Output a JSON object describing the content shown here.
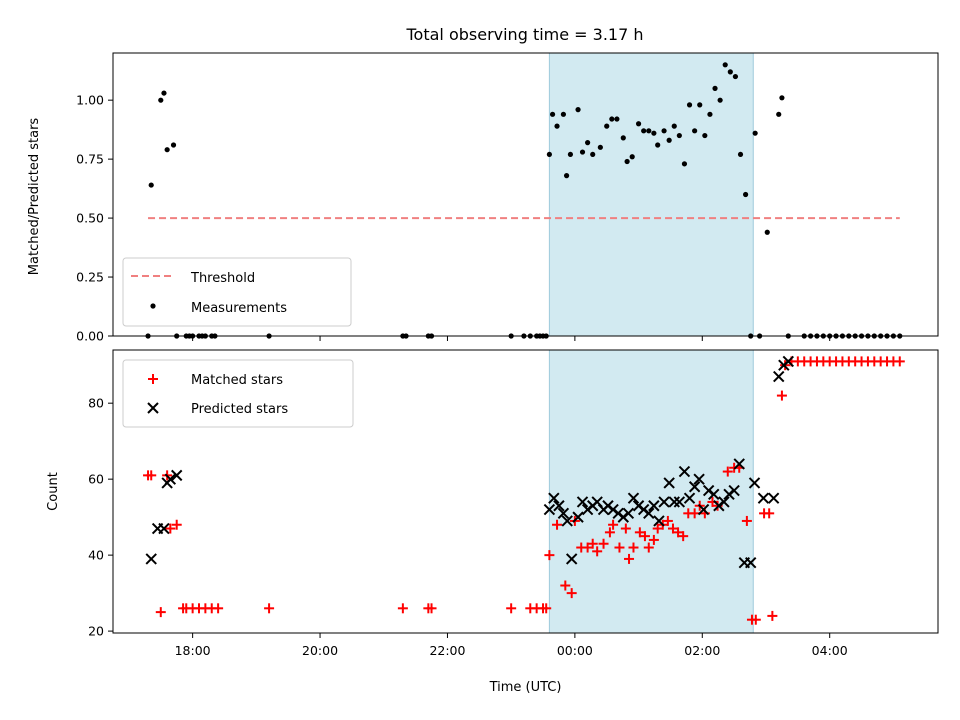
{
  "chart_data": [
    {
      "type": "scatter",
      "panel": "top",
      "title": "Total observing time = 3.17 h",
      "ylabel": "Matched/Predicted stars",
      "ylim": [
        0,
        1.2
      ],
      "yticks": [
        0.0,
        0.25,
        0.5,
        0.75,
        1.0
      ],
      "ytick_labels": [
        "0.00",
        "0.25",
        "0.50",
        "0.75",
        "1.00"
      ],
      "xlim_hours": [
        16.75,
        29.7
      ],
      "shaded_region_hours": [
        23.6,
        26.8
      ],
      "shaded_color": "#add8e6",
      "threshold": {
        "name": "Threshold",
        "value": 0.5,
        "x_range_hours": [
          17.3,
          29.1
        ],
        "color": "#f08080"
      },
      "series": [
        {
          "name": "Measurements",
          "color": "#000000",
          "marker": "dot",
          "x": [
            17.3,
            17.35,
            17.5,
            17.55,
            17.6,
            17.7,
            17.75,
            17.9,
            17.95,
            18.0,
            18.1,
            18.15,
            18.2,
            18.3,
            18.35,
            19.2,
            21.3,
            21.35,
            21.7,
            21.75,
            23.0,
            23.2,
            23.3,
            23.4,
            23.45,
            23.5,
            23.55,
            23.6,
            23.65,
            23.72,
            23.82,
            23.87,
            23.93,
            24.05,
            24.12,
            24.2,
            24.28,
            24.4,
            24.5,
            24.58,
            24.66,
            24.76,
            24.82,
            24.9,
            25.0,
            25.08,
            25.16,
            25.24,
            25.3,
            25.4,
            25.48,
            25.56,
            25.64,
            25.72,
            25.8,
            25.88,
            25.96,
            26.04,
            26.12,
            26.2,
            26.28,
            26.36,
            26.44,
            26.52,
            26.6,
            26.68,
            26.76,
            26.83,
            26.9,
            27.02,
            27.2,
            27.25,
            27.35,
            27.6,
            27.7,
            27.8,
            27.9,
            28.0,
            28.1,
            28.2,
            28.3,
            28.4,
            28.5,
            28.6,
            28.7,
            28.8,
            28.9,
            29.0,
            29.1
          ],
          "y": [
            0,
            0.64,
            1.0,
            1.03,
            0.79,
            0.81,
            0,
            0,
            0,
            0,
            0,
            0,
            0,
            0,
            0,
            0,
            0,
            0,
            0,
            0,
            0,
            0,
            0,
            0,
            0,
            0,
            0,
            0.77,
            0.94,
            0.89,
            0.94,
            0.68,
            0.77,
            0.96,
            0.78,
            0.82,
            0.77,
            0.8,
            0.89,
            0.92,
            0.92,
            0.84,
            0.74,
            0.76,
            0.9,
            0.87,
            0.87,
            0.86,
            0.81,
            0.87,
            0.83,
            0.89,
            0.85,
            0.73,
            0.98,
            0.87,
            0.98,
            0.85,
            0.94,
            1.05,
            1.0,
            1.15,
            1.12,
            1.1,
            0.77,
            0.6,
            0,
            0.86,
            0,
            0.44,
            0.94,
            1.01,
            0,
            0,
            0,
            0,
            0,
            0,
            0,
            0,
            0,
            0,
            0,
            0,
            0,
            0,
            0,
            0,
            0
          ]
        }
      ],
      "legend": {
        "position": "lower left",
        "entries": [
          "Threshold",
          "Measurements"
        ]
      }
    },
    {
      "type": "scatter",
      "panel": "bottom",
      "xlabel": "Time (UTC)",
      "ylabel": "Count",
      "ylim": [
        19.5,
        94
      ],
      "yticks": [
        20,
        40,
        60,
        80
      ],
      "ytick_labels": [
        "20",
        "40",
        "60",
        "80"
      ],
      "xlim_hours": [
        16.75,
        29.7
      ],
      "xticks_hours": [
        18,
        20,
        22,
        24,
        26,
        28
      ],
      "xtick_labels": [
        "18:00",
        "20:00",
        "22:00",
        "00:00",
        "02:00",
        "04:00"
      ],
      "shaded_region_hours": [
        23.6,
        26.8
      ],
      "shaded_color": "#add8e6",
      "series": [
        {
          "name": "Matched stars",
          "color": "#ff0000",
          "marker": "plus",
          "x": [
            17.3,
            17.35,
            17.6,
            17.75,
            17.5,
            17.65,
            17.85,
            17.9,
            18.0,
            18.1,
            18.2,
            18.3,
            18.4,
            19.2,
            21.3,
            21.7,
            21.75,
            23.0,
            23.3,
            23.4,
            23.5,
            23.55,
            23.6,
            23.72,
            23.85,
            23.95,
            24.0,
            24.1,
            24.2,
            24.28,
            24.35,
            24.45,
            24.55,
            24.6,
            24.7,
            24.8,
            24.85,
            24.92,
            25.02,
            25.1,
            25.16,
            25.24,
            25.3,
            25.38,
            25.46,
            25.54,
            25.62,
            25.7,
            25.78,
            25.88,
            25.96,
            26.04,
            26.16,
            26.24,
            26.4,
            26.5,
            26.58,
            26.7,
            26.78,
            26.84,
            26.97,
            27.05,
            27.1,
            27.25,
            27.3,
            27.4,
            27.5,
            27.6,
            27.7,
            27.8,
            27.9,
            28.0,
            28.1,
            28.2,
            28.3,
            28.4,
            28.5,
            28.6,
            28.7,
            28.8,
            28.9,
            29.0,
            29.1
          ],
          "y": [
            61,
            61,
            61,
            48,
            25,
            47,
            26,
            26,
            26,
            26,
            26,
            26,
            26,
            26,
            26,
            26,
            26,
            26,
            26,
            26,
            26,
            26,
            40,
            48,
            32,
            30,
            49,
            42,
            42,
            43,
            41,
            43,
            46,
            48,
            42,
            47,
            39,
            42,
            46,
            45,
            42,
            44,
            47,
            48,
            49,
            47,
            46,
            45,
            51,
            51,
            53,
            51,
            54,
            53,
            62,
            63,
            63,
            49,
            23,
            23,
            51,
            51,
            24,
            82,
            90,
            91,
            91,
            91,
            91,
            91,
            91,
            91,
            91,
            91,
            91,
            91,
            91,
            91,
            91,
            91,
            91,
            91,
            91
          ]
        },
        {
          "name": "Predicted stars",
          "color": "#000000",
          "marker": "x",
          "x": [
            17.35,
            17.45,
            17.55,
            17.6,
            17.65,
            17.75,
            23.6,
            23.67,
            23.75,
            23.82,
            23.88,
            23.95,
            24.05,
            24.12,
            24.2,
            24.28,
            24.35,
            24.45,
            24.52,
            24.6,
            24.68,
            24.76,
            24.84,
            24.92,
            25.0,
            25.08,
            25.16,
            25.24,
            25.32,
            25.4,
            25.48,
            25.56,
            25.64,
            25.72,
            25.8,
            25.88,
            25.95,
            26.02,
            26.1,
            26.18,
            26.26,
            26.34,
            26.42,
            26.5,
            26.58,
            26.66,
            26.76,
            26.82,
            26.96,
            27.12,
            27.2,
            27.28,
            27.35
          ],
          "y": [
            39,
            47,
            47,
            59,
            60,
            61,
            52,
            55,
            53,
            51,
            49,
            39,
            50,
            54,
            52,
            53,
            54,
            52,
            53,
            52,
            51,
            50,
            51,
            55,
            53,
            52,
            51,
            53,
            49,
            54,
            59,
            54,
            54,
            62,
            55,
            58,
            60,
            52,
            57,
            56,
            53,
            54,
            56,
            57,
            64,
            38,
            38,
            59,
            55,
            55,
            87,
            90,
            91
          ]
        }
      ],
      "legend": {
        "position": "upper left",
        "entries": [
          "Matched stars",
          "Predicted stars"
        ]
      }
    }
  ]
}
